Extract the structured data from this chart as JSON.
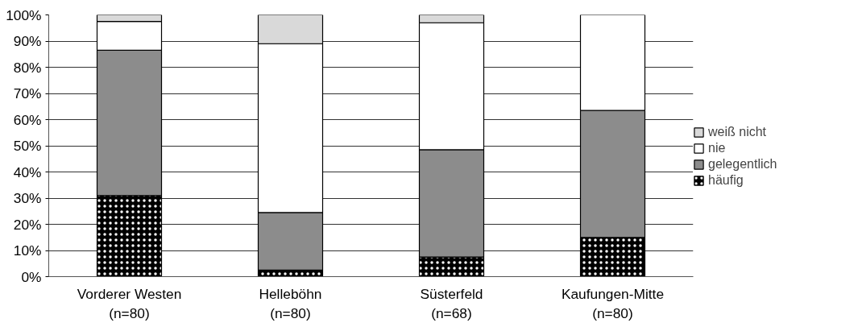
{
  "chart_data": {
    "type": "bar",
    "stacked": true,
    "categories": [
      "Vorderer Westen\n(n=80)",
      "Helleböhn\n(n=80)",
      "Süsterfeld\n(n=68)",
      "Kaufungen-Mitte\n(n=80)"
    ],
    "series": [
      {
        "name": "häufig",
        "color": "#000000",
        "values": [
          31,
          2.5,
          7.5,
          15
        ]
      },
      {
        "name": "gelegentlich",
        "color": "#8c8c8c",
        "values": [
          55.5,
          22,
          41,
          48.5
        ]
      },
      {
        "name": "nie",
        "color": "#ffffff",
        "values": [
          11,
          64.5,
          48.5,
          36.5
        ]
      },
      {
        "name": "weiß nicht",
        "color": "#d9d9d9",
        "values": [
          2.5,
          11,
          3,
          0
        ]
      }
    ],
    "ylim": [
      0,
      100
    ],
    "yticks": [
      {
        "value": 0,
        "label": "0%"
      },
      {
        "value": 10,
        "label": "10%"
      },
      {
        "value": 20,
        "label": "20%"
      },
      {
        "value": 30,
        "label": "30%"
      },
      {
        "value": 40,
        "label": "40%"
      },
      {
        "value": 50,
        "label": "50%"
      },
      {
        "value": 60,
        "label": "60%"
      },
      {
        "value": 70,
        "label": "70%"
      },
      {
        "value": 80,
        "label": "80%"
      },
      {
        "value": 90,
        "label": "90%"
      },
      {
        "value": 100,
        "label": "100%"
      }
    ],
    "grid": "y",
    "legend": "right"
  }
}
